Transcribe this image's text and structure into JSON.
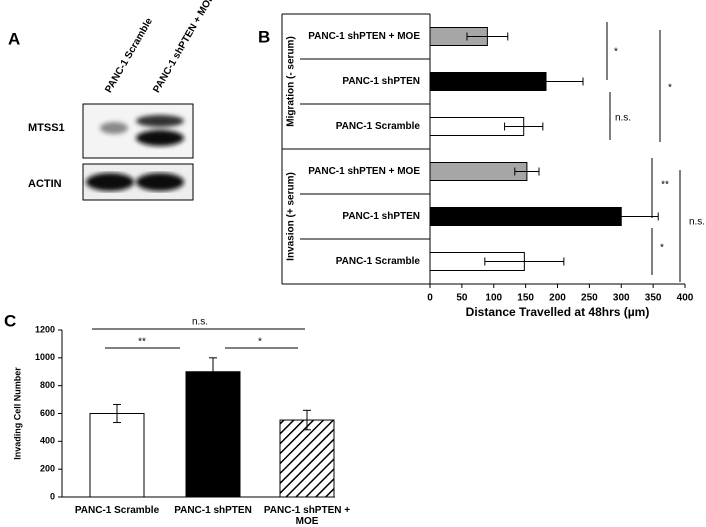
{
  "blot": {
    "panel_label": "A",
    "lanes": [
      "PANC-1 Scramble",
      "PANC-1 shPTEN + MOE"
    ],
    "rows": [
      "MTSS1",
      "ACTIN"
    ]
  },
  "chart_data": [
    {
      "type": "hbar",
      "panel_label": "B",
      "xlabel": "Distance Travelled at 48hrs (µm)",
      "groups": [
        "Migration (- serum)",
        "Invasion (+ serum)"
      ],
      "categories": [
        "PANC-1 shPTEN + MOE",
        "PANC-1 shPTEN",
        "PANC-1 Scramble",
        "PANC-1 shPTEN + MOE",
        "PANC-1 shPTEN",
        "PANC-1 Scramble"
      ],
      "values": [
        90,
        182,
        147,
        152,
        300,
        148
      ],
      "errors": [
        32,
        58,
        30,
        19,
        58,
        62
      ],
      "colors": [
        "#a6a6a6",
        "#000000",
        "#ffffff",
        "#a6a6a6",
        "#000000",
        "#ffffff"
      ],
      "xlim": [
        0,
        400
      ],
      "xticks": [
        0,
        50,
        100,
        150,
        200,
        250,
        300,
        350,
        400
      ],
      "annotations": [
        "*",
        "n.s.",
        "*",
        "**",
        "*",
        "n.s."
      ]
    },
    {
      "type": "bar",
      "panel_label": "C",
      "ylabel": "Invading Cell Number",
      "categories": [
        "PANC-1 Scramble",
        "PANC-1 shPTEN",
        "PANC-1 shPTEN + MOE"
      ],
      "values": [
        600,
        900,
        553
      ],
      "errors": [
        65,
        100,
        70
      ],
      "colors": [
        "#ffffff",
        "#000000",
        "#ffffff"
      ],
      "hatch": [
        false,
        false,
        true
      ],
      "ylim": [
        0,
        1200
      ],
      "yticks": [
        0,
        200,
        400,
        600,
        800,
        1000,
        1200
      ],
      "annotations": [
        "n.s.",
        "**",
        "*"
      ]
    }
  ]
}
